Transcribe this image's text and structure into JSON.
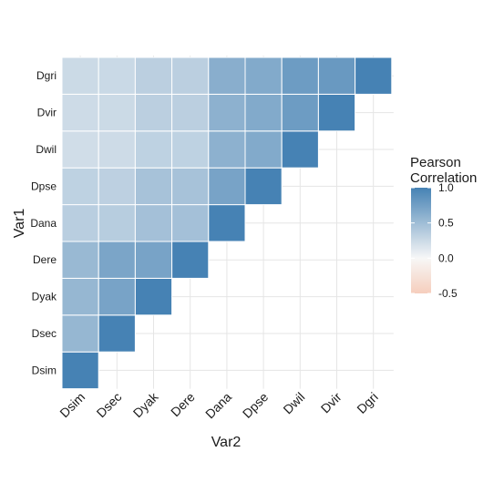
{
  "chart_data": {
    "type": "heatmap",
    "variables": [
      "Dsim",
      "Dsec",
      "Dyak",
      "Dere",
      "Dana",
      "Dpse",
      "Dwil",
      "Dvir",
      "Dgri"
    ],
    "xlabel": "Var2",
    "ylabel": "Var1",
    "legend": {
      "title_lines": [
        "Pearson",
        "Correlation"
      ],
      "ticks": [
        1.0,
        0.5,
        0.0,
        -0.5
      ],
      "tick_labels": [
        "1.0",
        "0.5",
        "0.0",
        "-0.5"
      ],
      "limits": [
        -0.5,
        1.0
      ],
      "placement": "right"
    },
    "colors": {
      "low": "#F4A582",
      "mid": "#F7F7F7",
      "high": "#4682B4"
    },
    "grid": true,
    "triangle": "upper",
    "matrix": [
      [
        1.0,
        0.55,
        0.55,
        0.53,
        0.35,
        0.32,
        0.22,
        0.24,
        0.25
      ],
      [
        null,
        1.0,
        0.72,
        0.7,
        0.36,
        0.33,
        0.24,
        0.25,
        0.26
      ],
      [
        null,
        null,
        1.0,
        0.72,
        0.47,
        0.45,
        0.32,
        0.34,
        0.34
      ],
      [
        null,
        null,
        null,
        1.0,
        0.47,
        0.45,
        0.32,
        0.34,
        0.34
      ],
      [
        null,
        null,
        null,
        null,
        1.0,
        0.72,
        0.6,
        0.6,
        0.62
      ],
      [
        null,
        null,
        null,
        null,
        null,
        1.0,
        0.66,
        0.66,
        0.66
      ],
      [
        null,
        null,
        null,
        null,
        null,
        null,
        1.0,
        0.78,
        0.78
      ],
      [
        null,
        null,
        null,
        null,
        null,
        null,
        null,
        1.0,
        0.8
      ],
      [
        null,
        null,
        null,
        null,
        null,
        null,
        null,
        null,
        1.0
      ]
    ]
  }
}
